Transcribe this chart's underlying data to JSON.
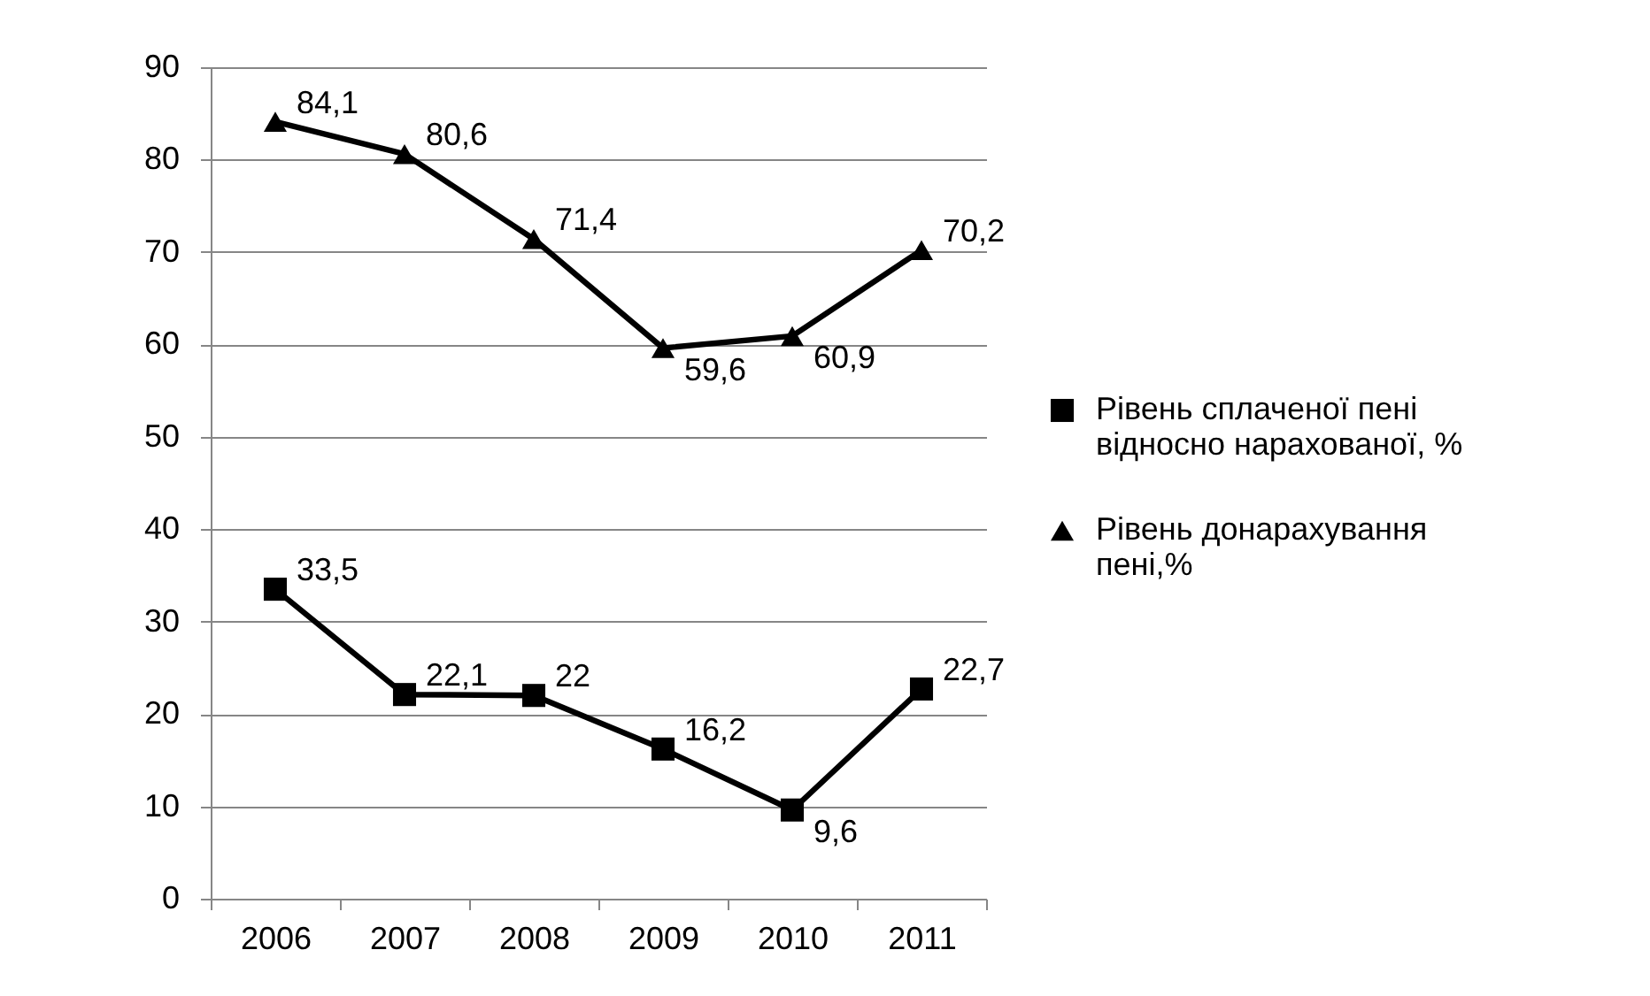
{
  "chart_data": {
    "type": "line",
    "categories": [
      "2006",
      "2007",
      "2008",
      "2009",
      "2010",
      "2011"
    ],
    "series": [
      {
        "name": "Рівень сплаченої пені відносно нарахованої, %",
        "color": "#000000",
        "marker": "square",
        "values": [
          33.5,
          22.1,
          22,
          16.2,
          9.6,
          22.7
        ],
        "value_labels": [
          "33,5",
          "22,1",
          "22",
          "16,2",
          "9,6",
          "22,7"
        ]
      },
      {
        "name": "Рівень донарахування пені,%",
        "color": "#000000",
        "marker": "triangle",
        "values": [
          84.1,
          80.6,
          71.4,
          59.6,
          60.9,
          70.2
        ],
        "value_labels": [
          "84,1",
          "80,6",
          "71,4",
          "59,6",
          "60,9",
          "70,2"
        ]
      }
    ],
    "ylim": [
      0,
      90
    ],
    "yticks": [
      0,
      10,
      20,
      30,
      40,
      50,
      60,
      70,
      80,
      90
    ],
    "grid": "y",
    "legend": "right",
    "line_style": "solid"
  }
}
